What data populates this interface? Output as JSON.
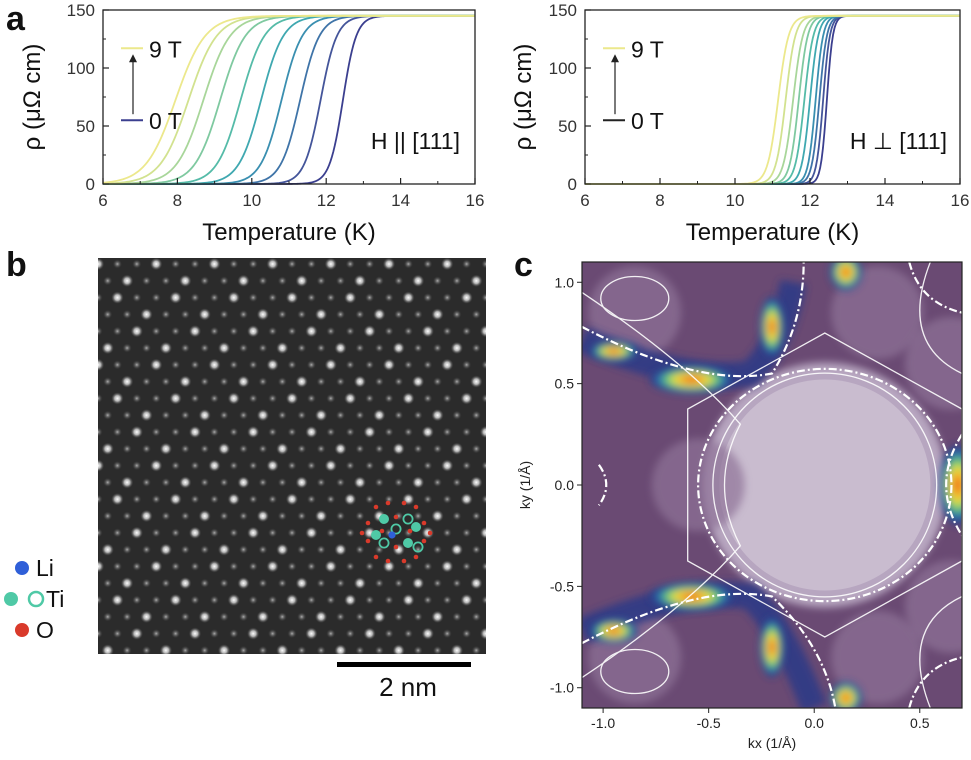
{
  "figure": {
    "labels": [
      "a",
      "b",
      "c"
    ]
  },
  "chart_data": [
    {
      "type": "line",
      "panel": "a-left",
      "xlabel": "Temperature (K)",
      "ylabel": "ρ (μΩ cm)",
      "xlim": [
        6,
        16
      ],
      "ylim": [
        0,
        150
      ],
      "xticks": [
        "6",
        "8",
        "10",
        "12",
        "14",
        "16"
      ],
      "yticks": [
        "0",
        "50",
        "100",
        "150"
      ],
      "field_label": "H || [111]",
      "legend": {
        "top": "9 T",
        "bottom": "0 T"
      },
      "rho_normal": 145,
      "series": [
        {
          "tc": 12.45,
          "width": 0.18,
          "color": "#3b3f8f"
        },
        {
          "tc": 11.85,
          "width": 0.22,
          "color": "#44559a"
        },
        {
          "tc": 11.3,
          "width": 0.26,
          "color": "#3f74a8"
        },
        {
          "tc": 10.8,
          "width": 0.28,
          "color": "#3a8fb0"
        },
        {
          "tc": 10.25,
          "width": 0.3,
          "color": "#3fa8b0"
        },
        {
          "tc": 9.7,
          "width": 0.32,
          "color": "#55bba8"
        },
        {
          "tc": 9.15,
          "width": 0.34,
          "color": "#7fc9a0"
        },
        {
          "tc": 8.7,
          "width": 0.36,
          "color": "#a8d69a"
        },
        {
          "tc": 8.3,
          "width": 0.38,
          "color": "#d2e28f"
        },
        {
          "tc": 7.95,
          "width": 0.4,
          "color": "#ece88c"
        }
      ]
    },
    {
      "type": "line",
      "panel": "a-right",
      "xlabel": "Temperature (K)",
      "ylabel": "ρ (μΩ cm)",
      "xlim": [
        6,
        16
      ],
      "ylim": [
        0,
        150
      ],
      "xticks": [
        "6",
        "8",
        "10",
        "12",
        "14",
        "16"
      ],
      "yticks": [
        "0",
        "50",
        "100",
        "150"
      ],
      "field_label": "H ⊥ [111]",
      "legend": {
        "top": "9 T",
        "bottom": "0 T"
      },
      "rho_normal": 145,
      "series": [
        {
          "tc": 12.45,
          "width": 0.08,
          "color": "#3b3f8f"
        },
        {
          "tc": 12.35,
          "width": 0.09,
          "color": "#44559a"
        },
        {
          "tc": 12.25,
          "width": 0.1,
          "color": "#3f74a8"
        },
        {
          "tc": 12.15,
          "width": 0.1,
          "color": "#3a8fb0"
        },
        {
          "tc": 12.0,
          "width": 0.11,
          "color": "#3fa8b0"
        },
        {
          "tc": 11.85,
          "width": 0.12,
          "color": "#55bba8"
        },
        {
          "tc": 11.7,
          "width": 0.12,
          "color": "#7fc9a0"
        },
        {
          "tc": 11.55,
          "width": 0.13,
          "color": "#a8d69a"
        },
        {
          "tc": 11.35,
          "width": 0.13,
          "color": "#d2e28f"
        },
        {
          "tc": 11.15,
          "width": 0.14,
          "color": "#ece88c"
        }
      ]
    },
    {
      "type": "heatmap",
      "panel": "c",
      "xlabel": "kx (1/Å)",
      "ylabel": "ky (1/Å)",
      "xlim": [
        -1.1,
        0.7
      ],
      "ylim": [
        -1.1,
        1.1
      ],
      "xticks": [
        "-1.0",
        "-0.5",
        "0.0",
        "0.5"
      ],
      "yticks": [
        "1.0",
        "0.5",
        "0.0",
        "-0.5",
        "-1.0"
      ]
    }
  ],
  "panel_b": {
    "scale_bar": "2 nm",
    "legend": [
      {
        "label": "Li",
        "color": "#2f5fd8",
        "icon": "filled-circle"
      },
      {
        "label": "Ti",
        "color": "#4fc9a6",
        "icon": "filled-and-open-circle"
      },
      {
        "label": "O",
        "color": "#d93a2b",
        "icon": "filled-circle"
      }
    ]
  }
}
